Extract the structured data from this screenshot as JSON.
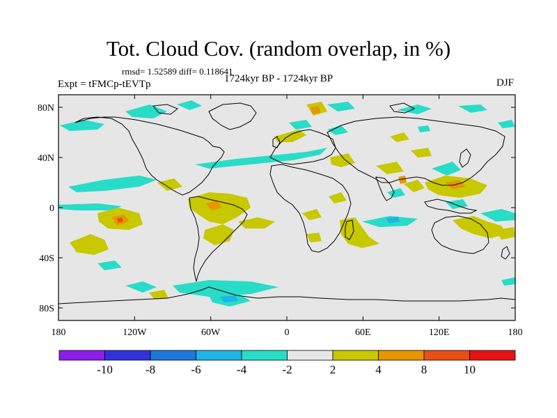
{
  "title": "Tot. Cloud Cov. (random overlap, in %)",
  "subtitle_stats": "rmsd= 1.52589 diff= 0.118641",
  "experiment": "Expt = tFMCp-tEVTp",
  "period": "1724kyr BP - 1724kyr BP",
  "season": "DJF",
  "map": {
    "lon_ticks": [
      "180",
      "120W",
      "60W",
      "0",
      "60E",
      "120E",
      "180"
    ],
    "lat_ticks": [
      "80N",
      "40N",
      "0",
      "40S",
      "80S"
    ],
    "background_color": "#e6e6e6"
  },
  "colorbar": {
    "labels": [
      "-10",
      "-8",
      "-6",
      "-4",
      "-2",
      "2",
      "4",
      "8",
      "10"
    ],
    "colors": [
      "#8c1ee6",
      "#3232dc",
      "#1e78dc",
      "#1eb4e6",
      "#28dcc8",
      "#e6e6e6",
      "#c8c800",
      "#e69600",
      "#e65014",
      "#e61414"
    ]
  },
  "anomaly_colors": {
    "cyan": "#28dcc8",
    "lightblue": "#1eb4e6",
    "yellow": "#c8c800",
    "orange": "#e69600",
    "red_orange": "#e65014"
  }
}
